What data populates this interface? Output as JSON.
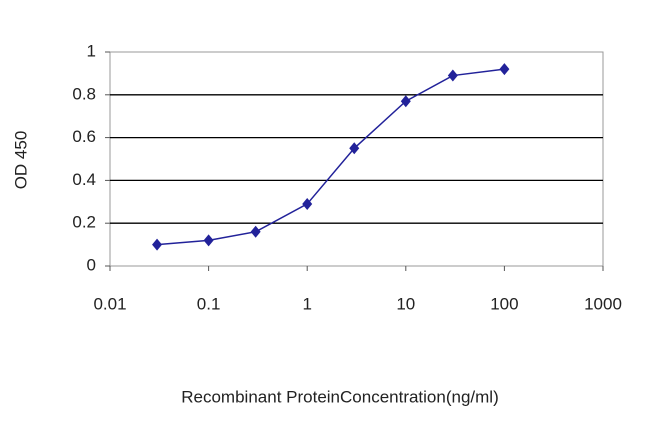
{
  "chart_data": {
    "type": "line",
    "x_label": "Recombinant ProteinConcentration(ng/ml)",
    "y_label": "OD 450",
    "x": [
      0.03,
      0.1,
      0.3,
      1,
      3,
      10,
      30,
      100
    ],
    "series": [
      {
        "color": "#22229a",
        "values": [
          0.1,
          0.12,
          0.16,
          0.29,
          0.55,
          0.77,
          0.89,
          0.92
        ]
      }
    ],
    "xscale": "log",
    "xlim": [
      0.01,
      1000
    ],
    "xticks": [
      0.01,
      0.1,
      1,
      10,
      100,
      1000
    ],
    "ylim": [
      0,
      1
    ],
    "yticks": [
      0,
      0.2,
      0.4,
      0.6,
      0.8,
      1
    ],
    "grid": true
  }
}
